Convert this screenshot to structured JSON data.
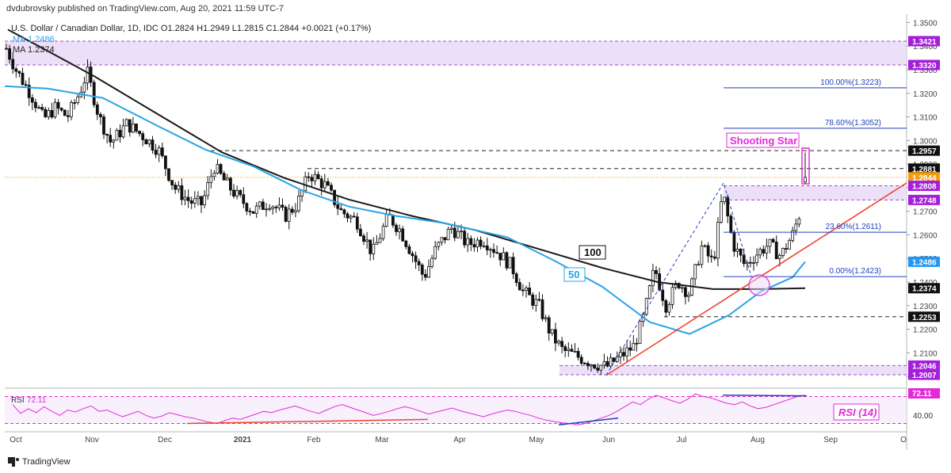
{
  "header": {
    "publisher": "dvdubrovsky published on TradingView.com, Aug 20, 2021 11:59 UTC-7",
    "symbol_line": "U.S. Dollar / Canadian Dollar, 1D, IDC  O1.2824  H1.2949  L1.2815  C1.2844  +0.0021 (+0.17%)",
    "ma1_line": "MA 1.2486",
    "ma2_line": "MA 1.2374"
  },
  "footer": {
    "brand": "TradingView"
  },
  "colors": {
    "candle": "#111111",
    "ma50": "#2aa3e6",
    "ma100": "#1a1a1a",
    "trendline": "#f0442e",
    "zone": "#e7d8f7",
    "fib": "#1f3fbf",
    "annotation": "#e22bd6",
    "rsi": "#e22bd6",
    "orange": "#f39c12",
    "blue_badge": "#2196f3"
  },
  "chart_data": {
    "type": "candlestick",
    "title": "U.S. Dollar / Canadian Dollar, 1D, IDC",
    "ylim": [
      1.195,
      1.3535
    ],
    "y_ticks": [
      "1.3500",
      "1.3400",
      "1.3300",
      "1.3200",
      "1.3100",
      "1.3000",
      "1.2900",
      "1.2800",
      "1.2700",
      "1.2600",
      "1.2500",
      "1.2400",
      "1.2300",
      "1.2200",
      "1.2100",
      "1.2000"
    ],
    "x_labels": [
      "Oct",
      "Nov",
      "Dec",
      "2021",
      "Feb",
      "Mar",
      "Apr",
      "May",
      "Jun",
      "Jul",
      "Aug",
      "Sep",
      "O"
    ],
    "ohlc": {
      "open": 1.2824,
      "high": 1.2949,
      "low": 1.2815,
      "close": 1.2844,
      "change": "+0.0021 (+0.17%)"
    },
    "price_badges": [
      {
        "label": "1.3421",
        "kind": "zone"
      },
      {
        "label": "1.3320",
        "kind": "zone"
      },
      {
        "label": "1.2957",
        "kind": "level"
      },
      {
        "label": "1.2881",
        "kind": "level"
      },
      {
        "label": "1.2844",
        "kind": "last"
      },
      {
        "label": "1.2808",
        "kind": "zone"
      },
      {
        "label": "1.2748",
        "kind": "zone"
      },
      {
        "label": "1.2486",
        "kind": "ma50"
      },
      {
        "label": "1.2374",
        "kind": "level"
      },
      {
        "label": "1.2253",
        "kind": "level"
      },
      {
        "label": "1.2046",
        "kind": "zone"
      },
      {
        "label": "1.2007",
        "kind": "zone"
      }
    ],
    "fibonacci": [
      {
        "label": "100.00%(1.3223)",
        "value": 1.3223
      },
      {
        "label": "78.60%(1.3052)",
        "value": 1.3052
      },
      {
        "label": "23.60%(1.2611)",
        "value": 1.2611
      },
      {
        "label": "0.00%(1.2423)",
        "value": 1.2423
      }
    ],
    "zones": [
      {
        "top": 1.3421,
        "bottom": 1.332
      },
      {
        "top": 1.2808,
        "bottom": 1.2748
      },
      {
        "top": 1.2046,
        "bottom": 1.2007
      }
    ],
    "moving_average_labels": [
      "100",
      "50"
    ],
    "moving_averages": [
      {
        "name": "MA",
        "period": "100",
        "value": 1.2374
      },
      {
        "name": "MA",
        "period": "50",
        "value": 1.2486
      }
    ],
    "annotations": [
      "Shooting Star"
    ],
    "rsi": {
      "label": "RSI",
      "value": "72.11",
      "badge": "72.11",
      "title": "RSI (14)",
      "ticks": [
        "40.00"
      ],
      "levels": [
        70,
        30
      ],
      "series": [
        58,
        45,
        52,
        46,
        55,
        48,
        42,
        50,
        47,
        52,
        56,
        48,
        50,
        45,
        40,
        44,
        48,
        42,
        38,
        41,
        46,
        43,
        40,
        38,
        35,
        32,
        30,
        34,
        38,
        36,
        40,
        44,
        48,
        46,
        50,
        53,
        56,
        52,
        48,
        45,
        50,
        55,
        58,
        54,
        50,
        46,
        42,
        45,
        48,
        52,
        55,
        52,
        48,
        44,
        47,
        50,
        53,
        49,
        46,
        43,
        40,
        44,
        47,
        50,
        48,
        45,
        42,
        38,
        35,
        33,
        31,
        30,
        28,
        30,
        34,
        38,
        42,
        48,
        55,
        62,
        58,
        66,
        72,
        68,
        64,
        60,
        66,
        74,
        70,
        68,
        64,
        60,
        58,
        62,
        56,
        52,
        54,
        58,
        62,
        66,
        70,
        72
      ]
    }
  }
}
